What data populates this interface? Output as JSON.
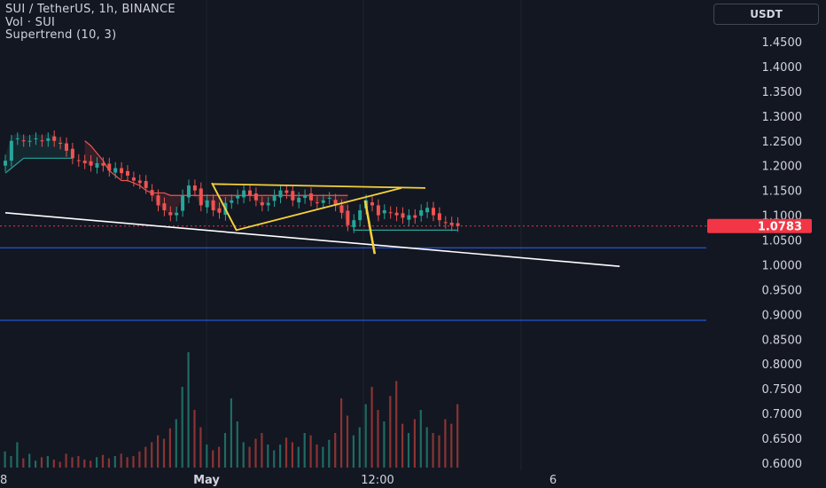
{
  "legend": {
    "symbol_line": "SUI / TetherUS, 1h, BINANCE",
    "volume_line": "Vol · SUI",
    "indicator_line": "Supertrend (10, 3)"
  },
  "currency_button": "USDT",
  "colors": {
    "background": "#131722",
    "grid": "#1f232e",
    "up": "#26a69a",
    "down": "#ef5350",
    "trend_line": "#ffffff",
    "pattern": "#f5d13a",
    "horizontal_level": "#2962ff",
    "price_tag": "#f23645"
  },
  "chart_data": {
    "type": "candlestick",
    "symbol": "SUI / TetherUS",
    "interval": "1h",
    "exchange": "BINANCE",
    "y_axis": {
      "ticks": [
        "1.4500",
        "1.4000",
        "1.3500",
        "1.3000",
        "1.2500",
        "1.2000",
        "1.1500",
        "1.1000",
        "1.0500",
        "1.0000",
        "0.9500",
        "0.9000",
        "0.8500",
        "0.8000",
        "0.7500",
        "0.7000",
        "0.6500",
        "0.6000"
      ],
      "range": [
        0.595,
        1.475
      ]
    },
    "x_axis": {
      "ticks": [
        "8",
        "May",
        "12:00",
        "6"
      ]
    },
    "last_price": "1.0783",
    "last_price_value": 1.0783,
    "price_path": [
      1.21,
      1.25,
      1.255,
      1.25,
      1.25,
      1.255,
      1.25,
      1.255,
      1.25,
      1.245,
      1.23,
      1.215,
      1.21,
      1.205,
      1.2,
      1.205,
      1.2,
      1.19,
      1.195,
      1.185,
      1.18,
      1.17,
      1.165,
      1.155,
      1.14,
      1.12,
      1.11,
      1.1,
      1.105,
      1.14,
      1.16,
      1.15,
      1.12,
      1.13,
      1.11,
      1.105,
      1.125,
      1.13,
      1.14,
      1.15,
      1.14,
      1.13,
      1.12,
      1.125,
      1.14,
      1.15,
      1.145,
      1.13,
      1.135,
      1.14,
      1.13,
      1.125,
      1.13,
      1.135,
      1.12,
      1.105,
      1.08,
      1.09,
      1.11,
      1.13,
      1.12,
      1.1,
      1.11,
      1.105,
      1.1,
      1.095,
      1.1,
      1.095,
      1.11,
      1.115,
      1.1,
      1.09,
      1.085,
      1.08,
      1.0783
    ],
    "volume_path": [
      0.14,
      0.1,
      0.22,
      0.08,
      0.12,
      0.06,
      0.09,
      0.1,
      0.07,
      0.05,
      0.12,
      0.09,
      0.1,
      0.07,
      0.06,
      0.09,
      0.11,
      0.08,
      0.1,
      0.12,
      0.09,
      0.1,
      0.14,
      0.18,
      0.22,
      0.28,
      0.25,
      0.34,
      0.42,
      0.7,
      1.0,
      0.5,
      0.35,
      0.2,
      0.15,
      0.18,
      0.3,
      0.6,
      0.4,
      0.22,
      0.18,
      0.25,
      0.3,
      0.2,
      0.15,
      0.2,
      0.26,
      0.22,
      0.18,
      0.3,
      0.28,
      0.2,
      0.18,
      0.24,
      0.3,
      0.6,
      0.45,
      0.28,
      0.35,
      0.55,
      0.7,
      0.5,
      0.4,
      0.62,
      0.75,
      0.38,
      0.3,
      0.42,
      0.5,
      0.35,
      0.3,
      0.28,
      0.42,
      0.38,
      0.55
    ],
    "supertrend": {
      "up_segment": {
        "start_index": 0,
        "end_index": 11,
        "level": 1.215
      },
      "down_segment": {
        "start_index": 13,
        "end_index": 56,
        "levels": [
          1.25,
          1.24,
          1.225,
          1.21,
          1.19,
          1.18,
          1.17,
          1.17,
          1.165,
          1.16,
          1.15,
          1.145,
          1.145,
          1.145,
          1.14,
          1.14,
          1.14,
          1.14,
          1.14,
          1.14,
          1.14,
          1.14,
          1.14,
          1.14,
          1.14,
          1.14,
          1.14,
          1.14,
          1.14,
          1.14,
          1.14,
          1.14,
          1.14,
          1.14,
          1.14,
          1.14,
          1.14,
          1.14,
          1.14,
          1.14,
          1.14,
          1.14,
          1.14,
          1.14
        ]
      },
      "up_segment_2": {
        "start_index": 57,
        "end_index": 74,
        "level": 1.07
      }
    },
    "drawings": {
      "trend_line": {
        "from": [
          0,
          1.105
        ],
        "to": [
          88,
          0.997
        ]
      },
      "horizontal_levels": [
        1.0345,
        0.888
      ],
      "triangle": [
        [
          29,
          1.165
        ],
        [
          33,
          1.07
        ],
        [
          60,
          1.155
        ]
      ],
      "triangle_top_edge": [
        [
          30,
          1.163
        ],
        [
          60,
          1.155
        ]
      ],
      "breakdown_leg": [
        [
          51,
          1.13
        ],
        [
          52,
          1.022
        ]
      ]
    }
  }
}
